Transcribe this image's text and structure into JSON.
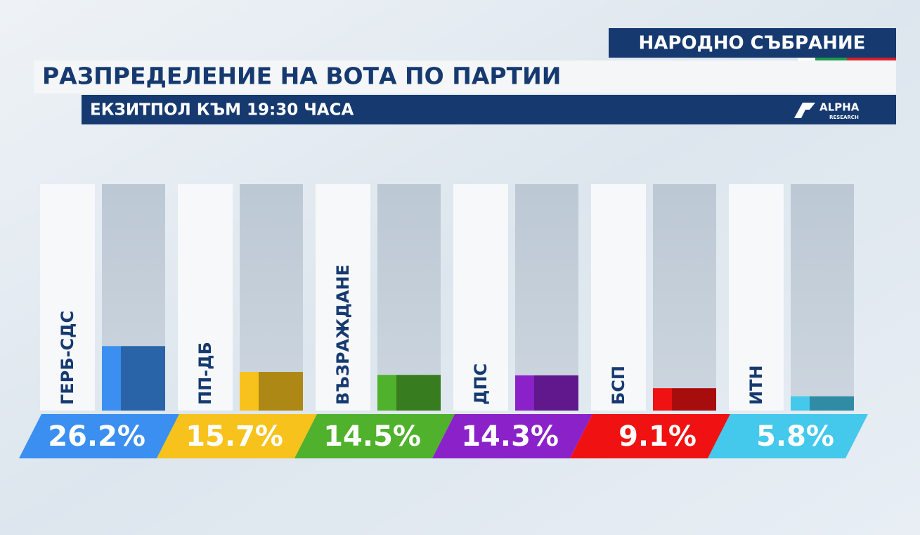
{
  "header": "НАРОДНО СЪБРАНИЕ",
  "logo": {
    "name": "ALPHA",
    "sub": "RESEARCH"
  },
  "chart_data": {
    "type": "bar",
    "title": "РАЗПРЕДЕЛЕНИЕ НА ВОТА ПО ПАРТИИ",
    "subtitle": "ЕКЗИТПОЛ КЪМ 19:30 ЧАСА",
    "categories": [
      "ГЕРБ-СДС",
      "ПП-ДБ",
      "ВЪЗРАЖДАНЕ",
      "ДПС",
      "БСП",
      "ИТН"
    ],
    "values": [
      26.2,
      15.7,
      14.5,
      14.3,
      9.1,
      5.8
    ],
    "value_labels": [
      "26.2%",
      "15.7%",
      "14.5%",
      "14.3%",
      "9.1%",
      "5.8%"
    ],
    "colors": [
      "#3a8ff0",
      "#f7c21c",
      "#4fb12c",
      "#8b22c9",
      "#f01212",
      "#44c8ec"
    ]
  }
}
